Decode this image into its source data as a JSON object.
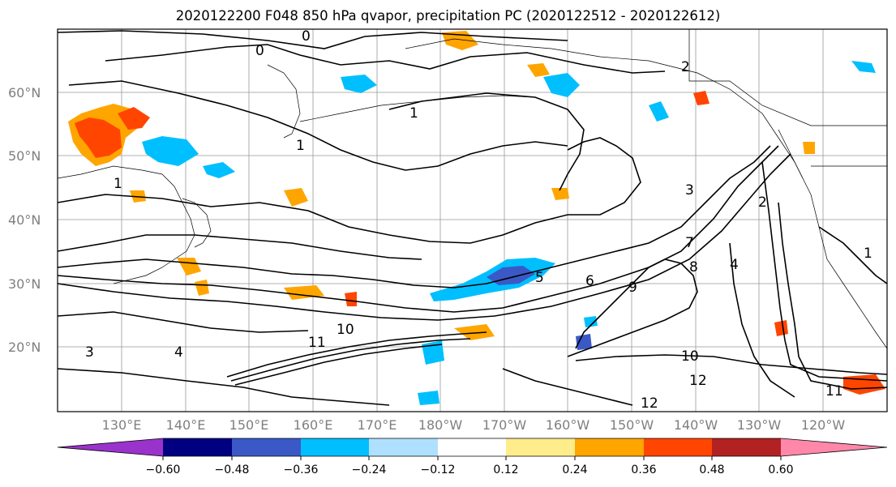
{
  "title": "2020122200 F048 850 hPa qvapor, precipitation PC (2020122512 - 2020122612)",
  "map": {
    "lat_labels": [
      "60°N",
      "50°N",
      "40°N",
      "30°N",
      "20°N"
    ],
    "lon_labels": [
      "130°E",
      "140°E",
      "150°E",
      "160°E",
      "170°E",
      "180°W",
      "170°W",
      "160°W",
      "150°W",
      "140°W",
      "130°W",
      "120°W"
    ],
    "contour_labels": [
      "0",
      "0",
      "1",
      "1",
      "1",
      "2",
      "3",
      "4",
      "5",
      "6",
      "7",
      "8",
      "9",
      "10",
      "11",
      "11",
      "12",
      "12",
      "2",
      "1",
      "4",
      "3",
      "10"
    ]
  },
  "colorbar": {
    "colors": [
      "#9933cc",
      "#000080",
      "#3a59c7",
      "#00bfff",
      "#b0e0ff",
      "#ffffff",
      "#ffec8b",
      "#ffa500",
      "#ff4500",
      "#b22222",
      "#ff88aa"
    ],
    "tick_labels": [
      "−0.60",
      "−0.48",
      "−0.36",
      "−0.24",
      "−0.12",
      "0.12",
      "0.24",
      "0.36",
      "0.48",
      "0.60"
    ]
  }
}
